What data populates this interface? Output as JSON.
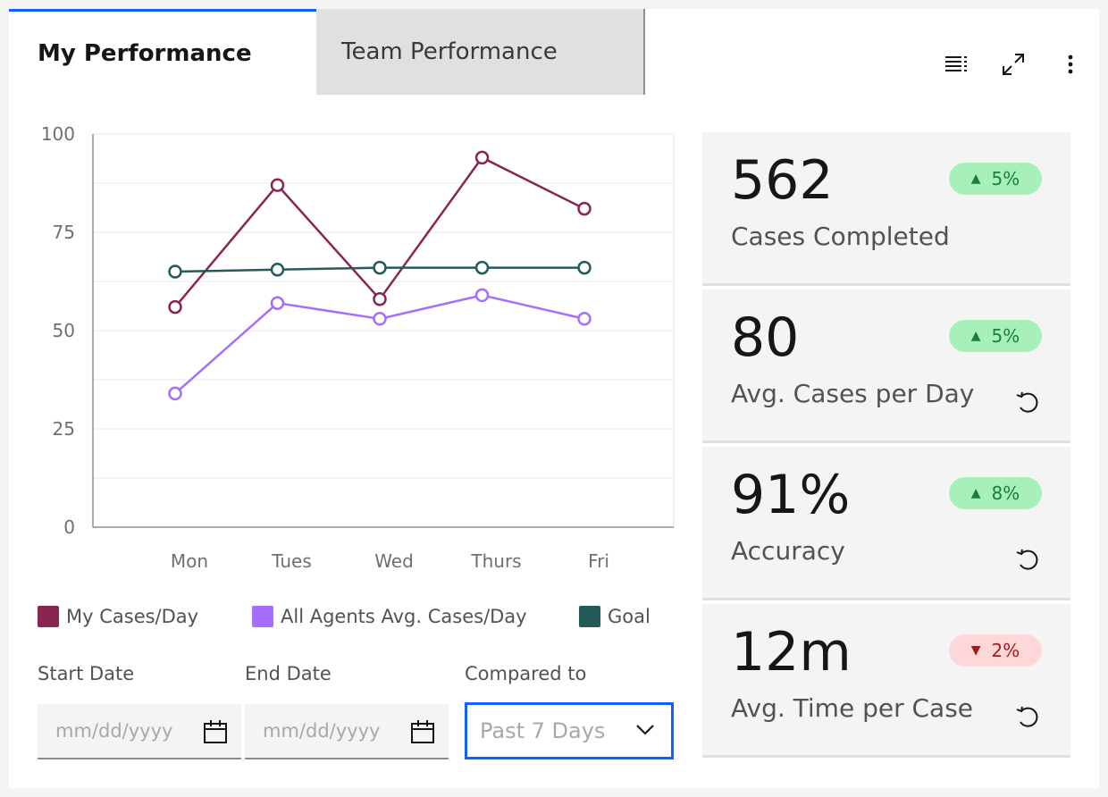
{
  "tabs": [
    {
      "label": "My Performance",
      "active": true
    },
    {
      "label": "Team Performance",
      "active": false
    }
  ],
  "toolbar": {
    "icons": [
      "list-view-icon",
      "maximize-icon",
      "overflow-menu-icon"
    ]
  },
  "chart_data": {
    "type": "line",
    "categories": [
      "Mon",
      "Tues",
      "Wed",
      "Thurs",
      "Fri"
    ],
    "ylim": [
      0,
      100
    ],
    "yticks": [
      0,
      25,
      50,
      75,
      100
    ],
    "grid": true,
    "legend_position": "bottom",
    "series": [
      {
        "name": "My Cases/Day",
        "color": "#8a2552",
        "values": [
          56,
          87,
          58,
          94,
          81
        ]
      },
      {
        "name": "All Agents Avg. Cases/Day",
        "color": "#a56eff",
        "values": [
          34,
          57,
          53,
          59,
          53
        ]
      },
      {
        "name": "Goal",
        "color": "#245b58",
        "values": [
          65,
          65.5,
          66,
          66,
          66
        ]
      }
    ]
  },
  "filters": {
    "start_label": "Start Date",
    "start_placeholder": "mm/dd/yyyy",
    "end_label": "End Date",
    "end_placeholder": "mm/dd/yyyy",
    "compare_label": "Compared to",
    "compare_value": "Past 7 Days"
  },
  "metrics": [
    {
      "value": "562",
      "label": "Cases Completed",
      "change": "5%",
      "direction": "up",
      "has_reset": false
    },
    {
      "value": "80",
      "label": "Avg. Cases per Day",
      "change": "5%",
      "direction": "up",
      "has_reset": true
    },
    {
      "value": "91%",
      "label": "Accuracy",
      "change": "8%",
      "direction": "up",
      "has_reset": true
    },
    {
      "value": "12m",
      "label": "Avg. Time per Case",
      "change": "2%",
      "direction": "down",
      "has_reset": true
    }
  ]
}
